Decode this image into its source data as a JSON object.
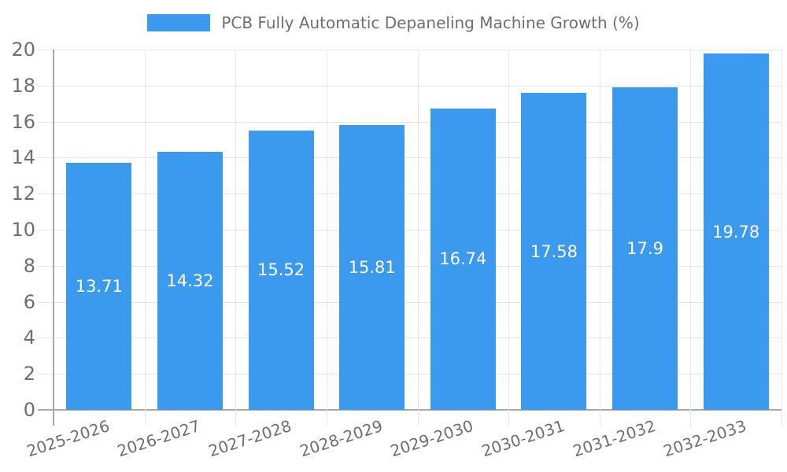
{
  "chart_data": {
    "type": "bar",
    "title": "PCB Fully Automatic Depaneling Machine Growth (%)",
    "legend": "PCB Fully Automatic Depaneling Machine Growth (%)",
    "legend_position": "top",
    "categories": [
      "2025-2026",
      "2026-2027",
      "2027-2028",
      "2028-2029",
      "2029-2030",
      "2030-2031",
      "2031-2032",
      "2032-2033"
    ],
    "values": [
      13.71,
      14.32,
      15.52,
      15.81,
      16.74,
      17.58,
      17.9,
      19.78
    ],
    "xlabel": "",
    "ylabel": "",
    "ylim": [
      0,
      20
    ],
    "ytick_step": 2,
    "ytick_labels": [
      "0",
      "2",
      "4",
      "6",
      "8",
      "10",
      "12",
      "14",
      "16",
      "18",
      "20"
    ],
    "grid": true,
    "colors": {
      "bar": "#3b9aee",
      "value_text": "#ffffff",
      "tick_text": "#6f6f6f",
      "legend_text": "#6f6f6f",
      "gridline": "#e6e6e6",
      "axis_line": "#a8a8a8"
    }
  }
}
